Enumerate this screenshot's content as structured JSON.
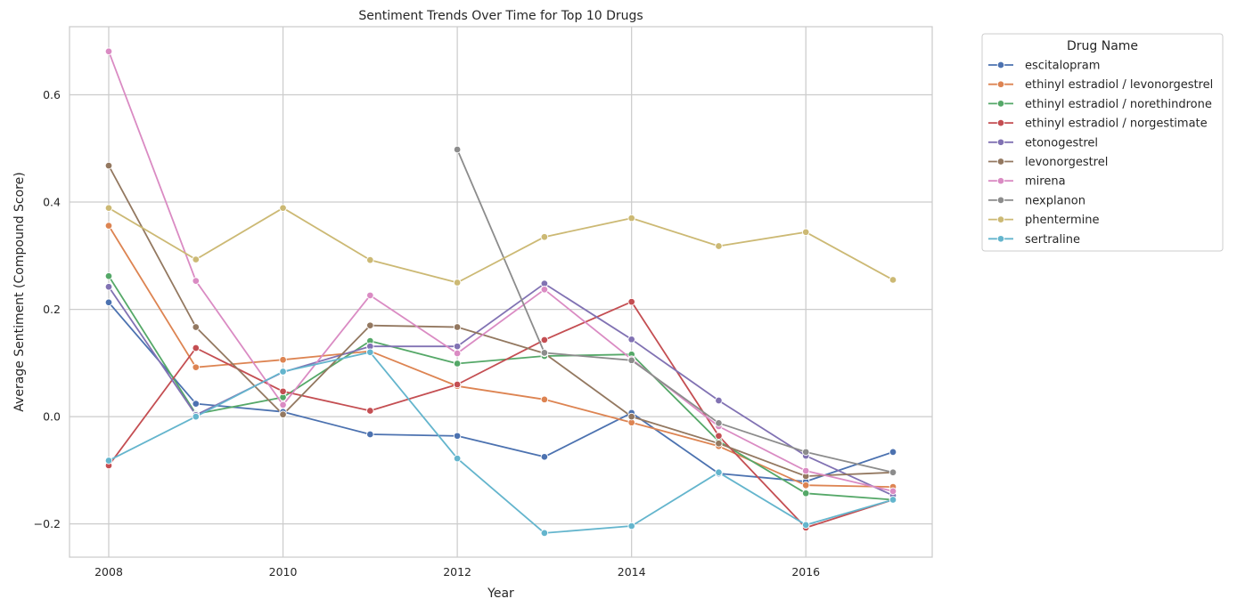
{
  "chart_data": {
    "type": "line",
    "title": "Sentiment Trends Over Time for Top 10 Drugs",
    "xlabel": "Year",
    "ylabel": "Average Sentiment (Compound Score)",
    "xlim": [
      2007.55,
      2017.45
    ],
    "ylim": [
      -0.262,
      0.727
    ],
    "xticks": [
      2008,
      2010,
      2012,
      2014,
      2016
    ],
    "xtick_labels": [
      "2008",
      "2010",
      "2012",
      "2014",
      "2016"
    ],
    "yticks": [
      -0.2,
      0.0,
      0.2,
      0.4,
      0.6
    ],
    "ytick_labels": [
      "−0.2",
      "0.0",
      "0.2",
      "0.4",
      "0.6"
    ],
    "grid": true,
    "legend": {
      "title": "Drug Name",
      "placement": "outside-right"
    },
    "series": [
      {
        "name": "escitalopram",
        "color": "#4c72b0",
        "points": [
          [
            2008,
            0.213
          ],
          [
            2009,
            0.024
          ],
          [
            2010,
            0.009
          ],
          [
            2011,
            -0.033
          ],
          [
            2012,
            -0.036
          ],
          [
            2013,
            -0.075
          ],
          [
            2014,
            0.007
          ],
          [
            2015,
            -0.106
          ],
          [
            2016,
            -0.121
          ],
          [
            2017,
            -0.066
          ]
        ]
      },
      {
        "name": "ethinyl estradiol / levonorgestrel",
        "color": "#dd8452",
        "points": [
          [
            2008,
            0.356
          ],
          [
            2009,
            0.092
          ],
          [
            2010,
            0.106
          ],
          [
            2011,
            0.122
          ],
          [
            2012,
            0.057
          ],
          [
            2013,
            0.032
          ],
          [
            2014,
            -0.011
          ],
          [
            2015,
            -0.055
          ],
          [
            2016,
            -0.128
          ],
          [
            2017,
            -0.131
          ]
        ]
      },
      {
        "name": "ethinyl estradiol / norethindrone",
        "color": "#55a868",
        "points": [
          [
            2008,
            0.262
          ],
          [
            2009,
            0.005
          ],
          [
            2010,
            0.036
          ],
          [
            2011,
            0.141
          ],
          [
            2012,
            0.099
          ],
          [
            2013,
            0.113
          ],
          [
            2014,
            0.116
          ],
          [
            2015,
            -0.046
          ],
          [
            2016,
            -0.143
          ],
          [
            2017,
            -0.155
          ]
        ]
      },
      {
        "name": "ethinyl estradiol / norgestimate",
        "color": "#c44e52",
        "points": [
          [
            2008,
            -0.091
          ],
          [
            2009,
            0.128
          ],
          [
            2010,
            0.047
          ],
          [
            2011,
            0.011
          ],
          [
            2012,
            0.06
          ],
          [
            2013,
            0.143
          ],
          [
            2014,
            0.214
          ],
          [
            2015,
            -0.036
          ],
          [
            2016,
            -0.207
          ],
          [
            2017,
            -0.155
          ]
        ]
      },
      {
        "name": "etonogestrel",
        "color": "#8172b3",
        "points": [
          [
            2008,
            0.242
          ],
          [
            2009,
            0.003
          ],
          [
            2010,
            0.083
          ],
          [
            2011,
            0.131
          ],
          [
            2012,
            0.131
          ],
          [
            2013,
            0.248
          ],
          [
            2014,
            0.144
          ],
          [
            2015,
            0.03
          ],
          [
            2016,
            -0.073
          ],
          [
            2017,
            -0.147
          ]
        ]
      },
      {
        "name": "levonorgestrel",
        "color": "#937860",
        "points": [
          [
            2008,
            0.468
          ],
          [
            2009,
            0.167
          ],
          [
            2010,
            0.004
          ],
          [
            2011,
            0.17
          ],
          [
            2012,
            0.167
          ],
          [
            2013,
            0.118
          ],
          [
            2014,
            0.0
          ],
          [
            2015,
            -0.05
          ],
          [
            2016,
            -0.111
          ],
          [
            2017,
            -0.104
          ]
        ]
      },
      {
        "name": "mirena",
        "color": "#da8bc3",
        "points": [
          [
            2008,
            0.681
          ],
          [
            2009,
            0.253
          ],
          [
            2010,
            0.022
          ],
          [
            2011,
            0.226
          ],
          [
            2012,
            0.118
          ],
          [
            2013,
            0.237
          ],
          [
            2014,
            0.107
          ],
          [
            2015,
            -0.018
          ],
          [
            2016,
            -0.101
          ],
          [
            2017,
            -0.139
          ]
        ]
      },
      {
        "name": "nexplanon",
        "color": "#8c8c8c",
        "points": [
          [
            2012,
            0.498
          ],
          [
            2013,
            0.119
          ],
          [
            2014,
            0.105
          ],
          [
            2015,
            -0.012
          ],
          [
            2016,
            -0.066
          ],
          [
            2017,
            -0.104
          ]
        ]
      },
      {
        "name": "phentermine",
        "color": "#ccb974",
        "points": [
          [
            2008,
            0.389
          ],
          [
            2009,
            0.293
          ],
          [
            2010,
            0.389
          ],
          [
            2011,
            0.292
          ],
          [
            2012,
            0.25
          ],
          [
            2013,
            0.335
          ],
          [
            2014,
            0.37
          ],
          [
            2015,
            0.318
          ],
          [
            2016,
            0.344
          ],
          [
            2017,
            0.255
          ]
        ]
      },
      {
        "name": "sertraline",
        "color": "#64b5cd",
        "points": [
          [
            2008,
            -0.082
          ],
          [
            2009,
            0.0
          ],
          [
            2010,
            0.084
          ],
          [
            2011,
            0.12
          ],
          [
            2012,
            -0.078
          ],
          [
            2013,
            -0.217
          ],
          [
            2014,
            -0.204
          ],
          [
            2015,
            -0.104
          ],
          [
            2016,
            -0.202
          ],
          [
            2017,
            -0.155
          ]
        ]
      }
    ]
  }
}
